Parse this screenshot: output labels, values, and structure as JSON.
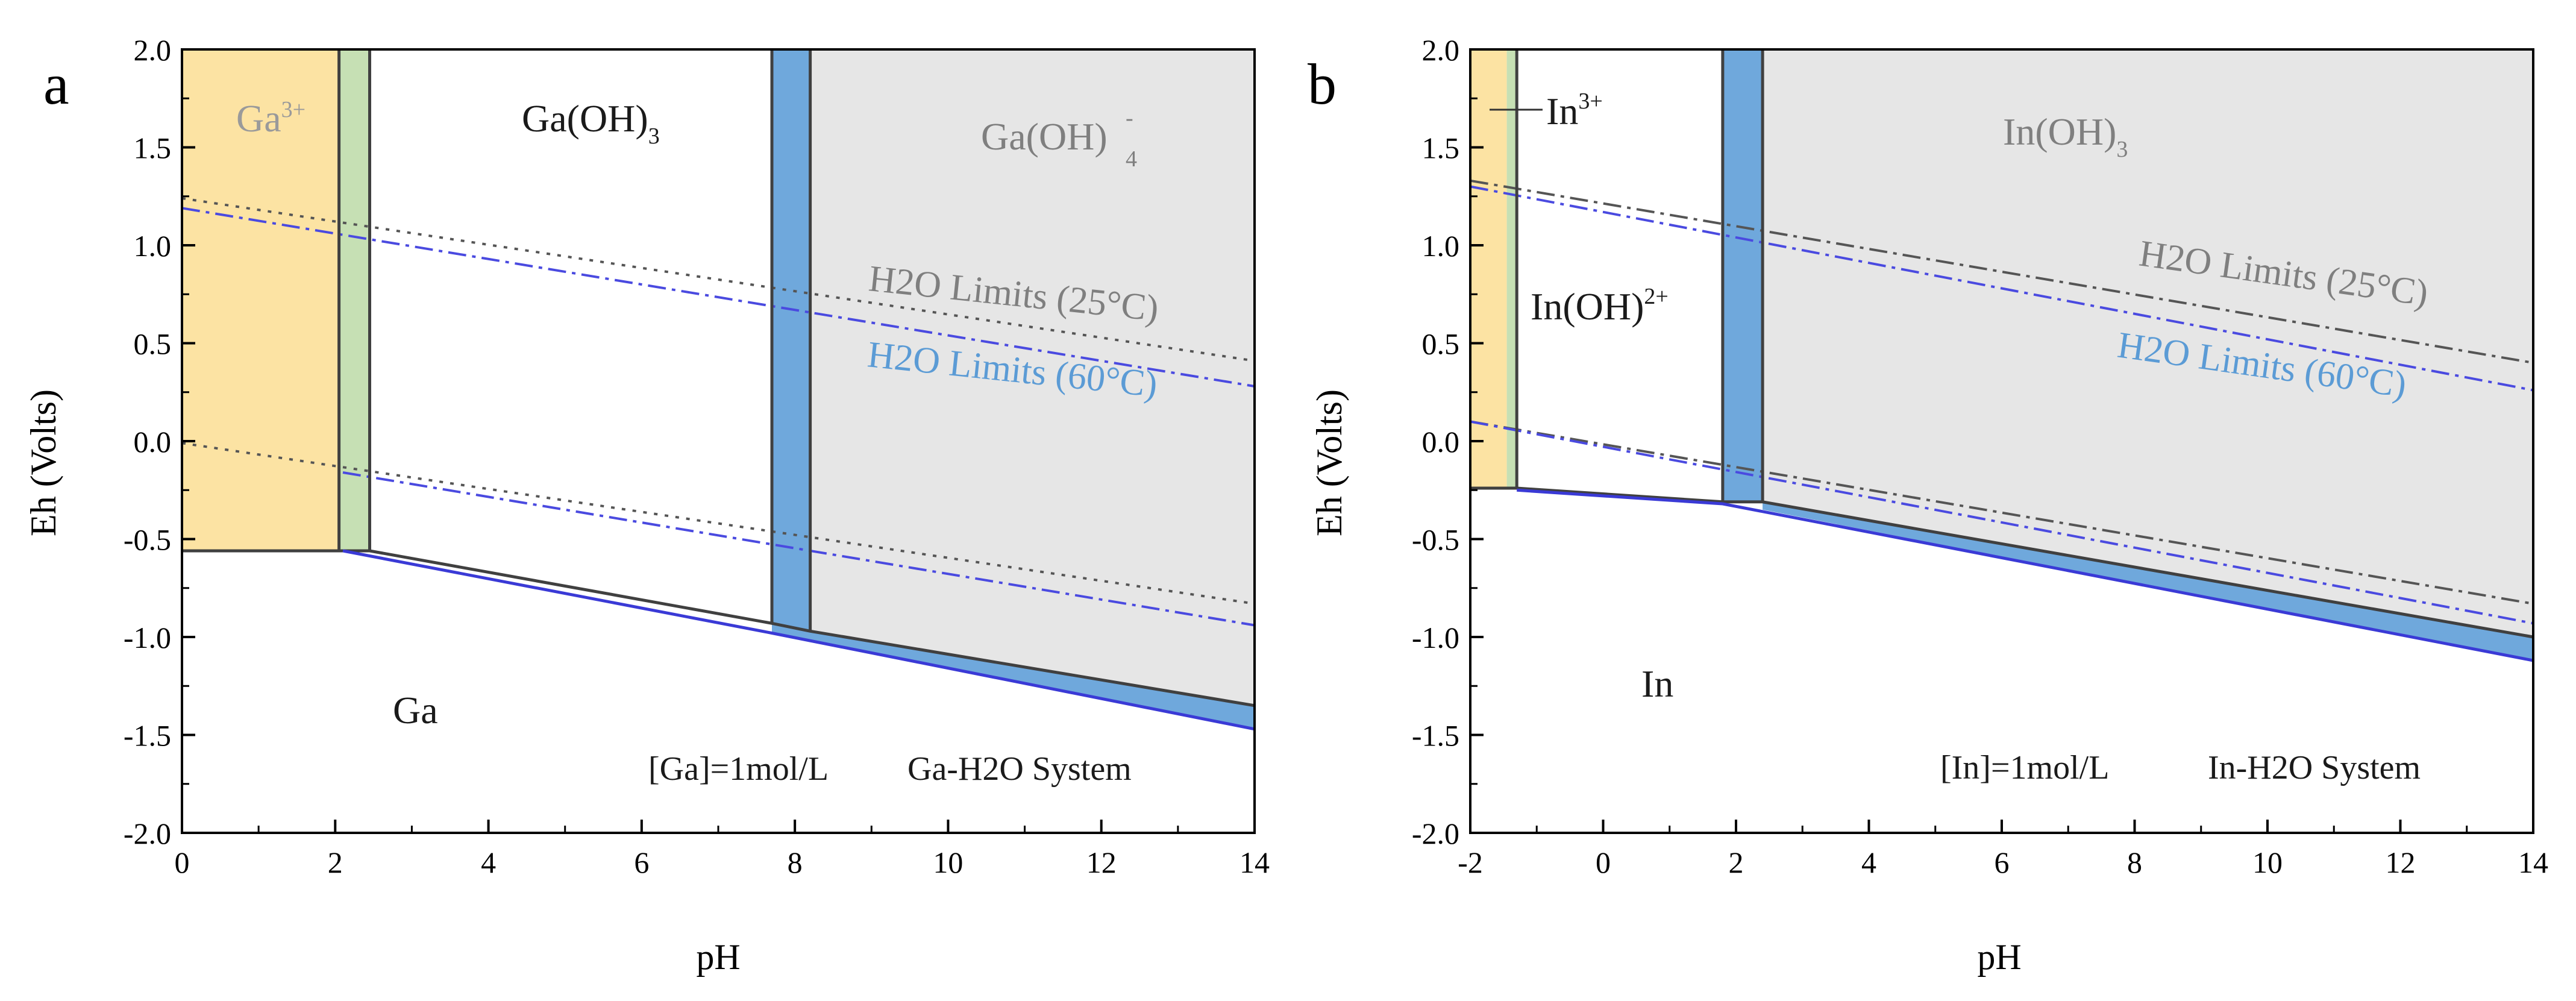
{
  "chart_data": [
    {
      "type": "area",
      "panel_label": "a",
      "xlabel": "pH",
      "ylabel": "Eh (Volts)",
      "xlim": [
        0,
        14
      ],
      "ylim": [
        -2.0,
        2.0
      ],
      "x_ticks": [
        "0",
        "2",
        "4",
        "6",
        "8",
        "10",
        "12",
        "14"
      ],
      "x_tick_values": [
        0,
        2,
        4,
        6,
        8,
        10,
        12,
        14
      ],
      "y_ticks": [
        "2.0",
        "1.5",
        "1.0",
        "0.5",
        "0.0",
        "-0.5",
        "-1.0",
        "-1.5",
        "-2.0"
      ],
      "y_tick_values": [
        2.0,
        1.5,
        1.0,
        0.5,
        0.0,
        -0.5,
        -1.0,
        -1.5,
        -2.0
      ],
      "colors": {
        "cation": "#fce3a3",
        "transition_green": "#c6e0b4",
        "transition_blue": "#6fa8dc",
        "anion_gray": "#e6e6e6",
        "boundary": "#404040",
        "boundary_60c": "#3a3ad6",
        "water_25c": "#555555",
        "water_60c": "#4a4ae0",
        "label_gray": "#7f7f7f",
        "label_blue": "#5b9bd5"
      },
      "regions": [
        {
          "name": "ga3plus",
          "color": "cation",
          "polygon": [
            [
              0,
              2.0
            ],
            [
              2.05,
              2.0
            ],
            [
              2.05,
              -0.56
            ],
            [
              0,
              -0.56
            ]
          ]
        },
        {
          "name": "green-band",
          "color": "transition_green",
          "polygon": [
            [
              2.05,
              2.0
            ],
            [
              2.45,
              2.0
            ],
            [
              2.45,
              -0.56
            ],
            [
              2.05,
              -0.56
            ]
          ]
        },
        {
          "name": "blue-band",
          "color": "transition_blue",
          "polygon": [
            [
              7.7,
              2.0
            ],
            [
              8.2,
              2.0
            ],
            [
              8.2,
              -0.97
            ],
            [
              7.7,
              -0.93
            ]
          ]
        },
        {
          "name": "gaoh4-region",
          "color": "anion_gray",
          "polygon": [
            [
              8.2,
              2.0
            ],
            [
              14,
              2.0
            ],
            [
              14,
              -1.35
            ],
            [
              8.2,
              -0.97
            ]
          ]
        },
        {
          "name": "lower-blue-strip",
          "color": "transition_blue",
          "polygon": [
            [
              7.7,
              -0.93
            ],
            [
              14,
              -1.35
            ],
            [
              14,
              -1.47
            ],
            [
              7.7,
              -0.98
            ]
          ]
        }
      ],
      "boundaries": [
        {
          "name": "ga-boundary-25c",
          "color": "boundary",
          "points": [
            [
              0,
              -0.56
            ],
            [
              2.45,
              -0.56
            ],
            [
              7.7,
              -0.93
            ],
            [
              8.2,
              -0.97
            ],
            [
              14,
              -1.35
            ]
          ]
        },
        {
          "name": "ga-boundary-60c",
          "color": "boundary_60c",
          "points": [
            [
              2.1,
              -0.56
            ],
            [
              7.7,
              -0.98
            ],
            [
              14,
              -1.47
            ]
          ]
        },
        {
          "name": "green-band-left-edge",
          "color": "boundary",
          "points": [
            [
              2.05,
              2.0
            ],
            [
              2.05,
              -0.56
            ]
          ]
        },
        {
          "name": "green-band-right-edge",
          "color": "boundary",
          "points": [
            [
              2.45,
              2.0
            ],
            [
              2.45,
              -0.56
            ]
          ]
        },
        {
          "name": "blue-band-left-edge",
          "color": "boundary",
          "points": [
            [
              7.7,
              2.0
            ],
            [
              7.7,
              -0.93
            ]
          ]
        },
        {
          "name": "blue-band-right-edge",
          "color": "boundary",
          "points": [
            [
              8.2,
              2.0
            ],
            [
              8.2,
              -0.97
            ]
          ]
        }
      ],
      "water_limits": [
        {
          "name": "o2-limit-25c",
          "color": "water_25c",
          "dash": "dot",
          "points": [
            [
              0,
              1.24
            ],
            [
              14,
              0.41
            ]
          ]
        },
        {
          "name": "o2-limit-60c",
          "color": "water_60c",
          "dash": "dashdot",
          "points": [
            [
              0,
              1.19
            ],
            [
              14,
              0.28
            ]
          ]
        },
        {
          "name": "h2-limit-25c",
          "color": "water_25c",
          "dash": "dot",
          "points": [
            [
              0,
              -0.01
            ],
            [
              14,
              -0.83
            ]
          ]
        },
        {
          "name": "h2-limit-60c",
          "color": "water_60c",
          "dash": "dashdot",
          "points": [
            [
              2.1,
              -0.16
            ],
            [
              14,
              -0.94
            ]
          ]
        }
      ],
      "labels": {
        "cation": "Ga",
        "cation_charge": "3+",
        "neutral": "Ga(OH)",
        "neutral_sub": "3",
        "anion": "Ga(OH)",
        "anion_sub": "4",
        "anion_charge": "-",
        "metal": "Ga",
        "limit_25c": "H2O Limits (25°C)",
        "limit_60c": "H2O Limits (60°C)",
        "concentration": "[Ga]=1mol/L",
        "system": "Ga-H2O System"
      }
    },
    {
      "type": "area",
      "panel_label": "b",
      "xlabel": "pH",
      "ylabel": "Eh (Volts)",
      "xlim": [
        -2,
        14
      ],
      "ylim": [
        -2.0,
        2.0
      ],
      "x_ticks": [
        "-2",
        "0",
        "2",
        "4",
        "6",
        "8",
        "10",
        "12",
        "14"
      ],
      "x_tick_values": [
        -2,
        0,
        2,
        4,
        6,
        8,
        10,
        12,
        14
      ],
      "y_ticks": [
        "2.0",
        "1.5",
        "1.0",
        "0.5",
        "0.0",
        "-0.5",
        "-1.0",
        "-1.5",
        "-2.0"
      ],
      "y_tick_values": [
        2.0,
        1.5,
        1.0,
        0.5,
        0.0,
        -0.5,
        -1.0,
        -1.5,
        -2.0
      ],
      "colors": {
        "cation": "#fce3a3",
        "transition_green": "#c6e0b4",
        "transition_blue": "#6fa8dc",
        "anion_gray": "#e6e6e6",
        "boundary": "#404040",
        "boundary_60c": "#3a3ad6",
        "water_25c": "#555555",
        "water_60c": "#4a4ae0",
        "label_gray": "#7f7f7f",
        "label_blue": "#5b9bd5"
      },
      "regions": [
        {
          "name": "in3plus",
          "color": "cation",
          "polygon": [
            [
              -2,
              2.0
            ],
            [
              -1.45,
              2.0
            ],
            [
              -1.45,
              -0.24
            ],
            [
              -2,
              -0.24
            ]
          ]
        },
        {
          "name": "in3plus-green-edge",
          "color": "transition_green",
          "polygon": [
            [
              -1.45,
              2.0
            ],
            [
              -1.3,
              2.0
            ],
            [
              -1.3,
              -0.24
            ],
            [
              -1.45,
              -0.24
            ]
          ]
        },
        {
          "name": "blue-band",
          "color": "transition_blue",
          "polygon": [
            [
              1.8,
              2.0
            ],
            [
              2.4,
              2.0
            ],
            [
              2.4,
              -0.31
            ],
            [
              1.8,
              -0.31
            ]
          ]
        },
        {
          "name": "inoh3-region",
          "color": "anion_gray",
          "polygon": [
            [
              2.4,
              2.0
            ],
            [
              14,
              2.0
            ],
            [
              14,
              -1.0
            ],
            [
              2.4,
              -0.31
            ]
          ]
        },
        {
          "name": "lower-blue-strip",
          "color": "transition_blue",
          "polygon": [
            [
              2.4,
              -0.31
            ],
            [
              14,
              -1.0
            ],
            [
              14,
              -1.12
            ],
            [
              2.4,
              -0.35
            ]
          ]
        }
      ],
      "boundaries": [
        {
          "name": "in-boundary-25c",
          "color": "boundary",
          "points": [
            [
              -2,
              -0.24
            ],
            [
              -1.3,
              -0.24
            ],
            [
              1.8,
              -0.31
            ],
            [
              2.4,
              -0.31
            ],
            [
              14,
              -1.0
            ]
          ]
        },
        {
          "name": "in-boundary-60c",
          "color": "boundary_60c",
          "points": [
            [
              -1.3,
              -0.25
            ],
            [
              1.8,
              -0.32
            ],
            [
              14,
              -1.12
            ]
          ]
        },
        {
          "name": "in3plus-right-edge",
          "color": "boundary",
          "points": [
            [
              -1.3,
              2.0
            ],
            [
              -1.3,
              -0.24
            ]
          ]
        },
        {
          "name": "blue-band-left-edge",
          "color": "boundary",
          "points": [
            [
              1.8,
              2.0
            ],
            [
              1.8,
              -0.31
            ]
          ]
        },
        {
          "name": "blue-band-right-edge",
          "color": "boundary",
          "points": [
            [
              2.4,
              2.0
            ],
            [
              2.4,
              -0.31
            ]
          ]
        }
      ],
      "water_limits": [
        {
          "name": "o2-limit-25c",
          "color": "water_25c",
          "dash": "dashdot",
          "points": [
            [
              -2,
              1.33
            ],
            [
              14,
              0.4
            ]
          ]
        },
        {
          "name": "o2-limit-60c",
          "color": "water_60c",
          "dash": "dashdot",
          "points": [
            [
              -2,
              1.3
            ],
            [
              14,
              0.26
            ]
          ]
        },
        {
          "name": "h2-limit-25c",
          "color": "water_25c",
          "dash": "dashdot",
          "points": [
            [
              -2,
              0.1
            ],
            [
              14,
              -0.83
            ]
          ]
        },
        {
          "name": "h2-limit-60c",
          "color": "water_60c",
          "dash": "dashdot",
          "points": [
            [
              -2,
              0.1
            ],
            [
              14,
              -0.93
            ]
          ]
        }
      ],
      "labels": {
        "cation": "In",
        "cation_charge": "3+",
        "intermediate": "In(OH)",
        "intermediate_charge": "2+",
        "neutral": "In(OH)",
        "neutral_sub": "3",
        "metal": "In",
        "limit_25c": "H2O Limits (25°C)",
        "limit_60c": "H2O Limits (60°C)",
        "concentration": "[In]=1mol/L",
        "system": "In-H2O System"
      }
    }
  ]
}
